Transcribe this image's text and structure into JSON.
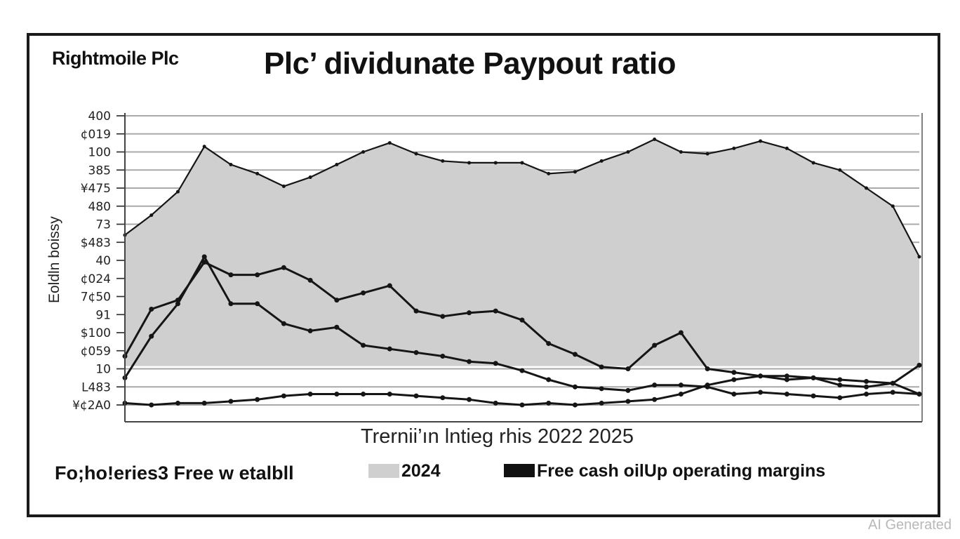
{
  "header": {
    "company": "Rightmoile Plc",
    "title": "Plc’ dividunate Paypout ratio"
  },
  "footer": {
    "left_text": "Fo;ho!eries3 Free w etalbll",
    "watermark": "AI Generated"
  },
  "colors": {
    "area_fill": "#cfcfcf",
    "line": "#151515",
    "grid": "#a9a9a9",
    "frame": "#1a1a1a"
  },
  "chart_data": {
    "type": "area",
    "title": "Plc’ dividunate Paypout ratio",
    "xlabel": "Trernii’ın lntieg rhis 2022 2025",
    "ylabel": "Eoldln boissy",
    "y_tick_labels": [
      "400",
      "¢019",
      "100",
      "385",
      "¥475",
      "480",
      "73",
      "$483",
      "40",
      "¢024",
      "7¢50",
      "91",
      "$100",
      "¢059",
      "10",
      "L483",
      "¥¢2A0"
    ],
    "grid": true,
    "legend": [
      {
        "label": "2024",
        "style": "area"
      },
      {
        "label": "Free cash oilUp  operating margins",
        "style": "line"
      }
    ],
    "ylim": [
      0,
      16
    ],
    "x": [
      0,
      1,
      2,
      3,
      4,
      5,
      6,
      7,
      8,
      9,
      10,
      11,
      12,
      13,
      14,
      15,
      16,
      17,
      18,
      19,
      20,
      21,
      22,
      23,
      24,
      25,
      26,
      27,
      28,
      29,
      30
    ],
    "series": [
      {
        "name": "2024",
        "kind": "area",
        "values": [
          9.4,
          10.5,
          11.8,
          14.3,
          13.3,
          12.8,
          12.1,
          12.6,
          13.3,
          14.0,
          14.5,
          13.9,
          13.5,
          13.4,
          13.4,
          13.4,
          12.8,
          12.9,
          13.5,
          14.0,
          14.7,
          14.0,
          13.9,
          14.2,
          14.6,
          14.2,
          13.4,
          13.0,
          12.0,
          11.0,
          8.2
        ]
      },
      {
        "name": "",
        "kind": "line",
        "values": [
          2.7,
          5.3,
          5.8,
          7.9,
          7.2,
          7.2,
          7.6,
          6.9,
          5.8,
          6.2,
          6.6,
          5.2,
          4.9,
          5.1,
          5.2,
          4.7,
          3.4,
          2.8,
          2.1,
          2.0,
          3.3,
          4.0,
          2.0,
          1.8,
          1.6,
          1.4,
          1.5,
          1.1,
          1.0,
          1.2,
          2.2
        ]
      },
      {
        "name": "",
        "kind": "line",
        "values": [
          1.5,
          3.8,
          5.6,
          8.2,
          5.6,
          5.6,
          4.5,
          4.1,
          4.3,
          3.3,
          3.1,
          2.9,
          2.7,
          2.4,
          2.3,
          1.9,
          1.4,
          1.0,
          0.9,
          0.8,
          1.1,
          1.1,
          1.0,
          0.6,
          0.7,
          0.6,
          0.5,
          0.4,
          0.6,
          0.7,
          0.6
        ]
      },
      {
        "name": "",
        "kind": "line",
        "values": [
          0.1,
          0.0,
          0.1,
          0.1,
          0.2,
          0.3,
          0.5,
          0.6,
          0.6,
          0.6,
          0.6,
          0.5,
          0.4,
          0.3,
          0.1,
          0.0,
          0.1,
          0.0,
          0.1,
          0.2,
          0.3,
          0.6,
          1.1,
          1.4,
          1.6,
          1.6,
          1.5,
          1.4,
          1.3,
          1.2,
          0.6
        ]
      }
    ]
  }
}
